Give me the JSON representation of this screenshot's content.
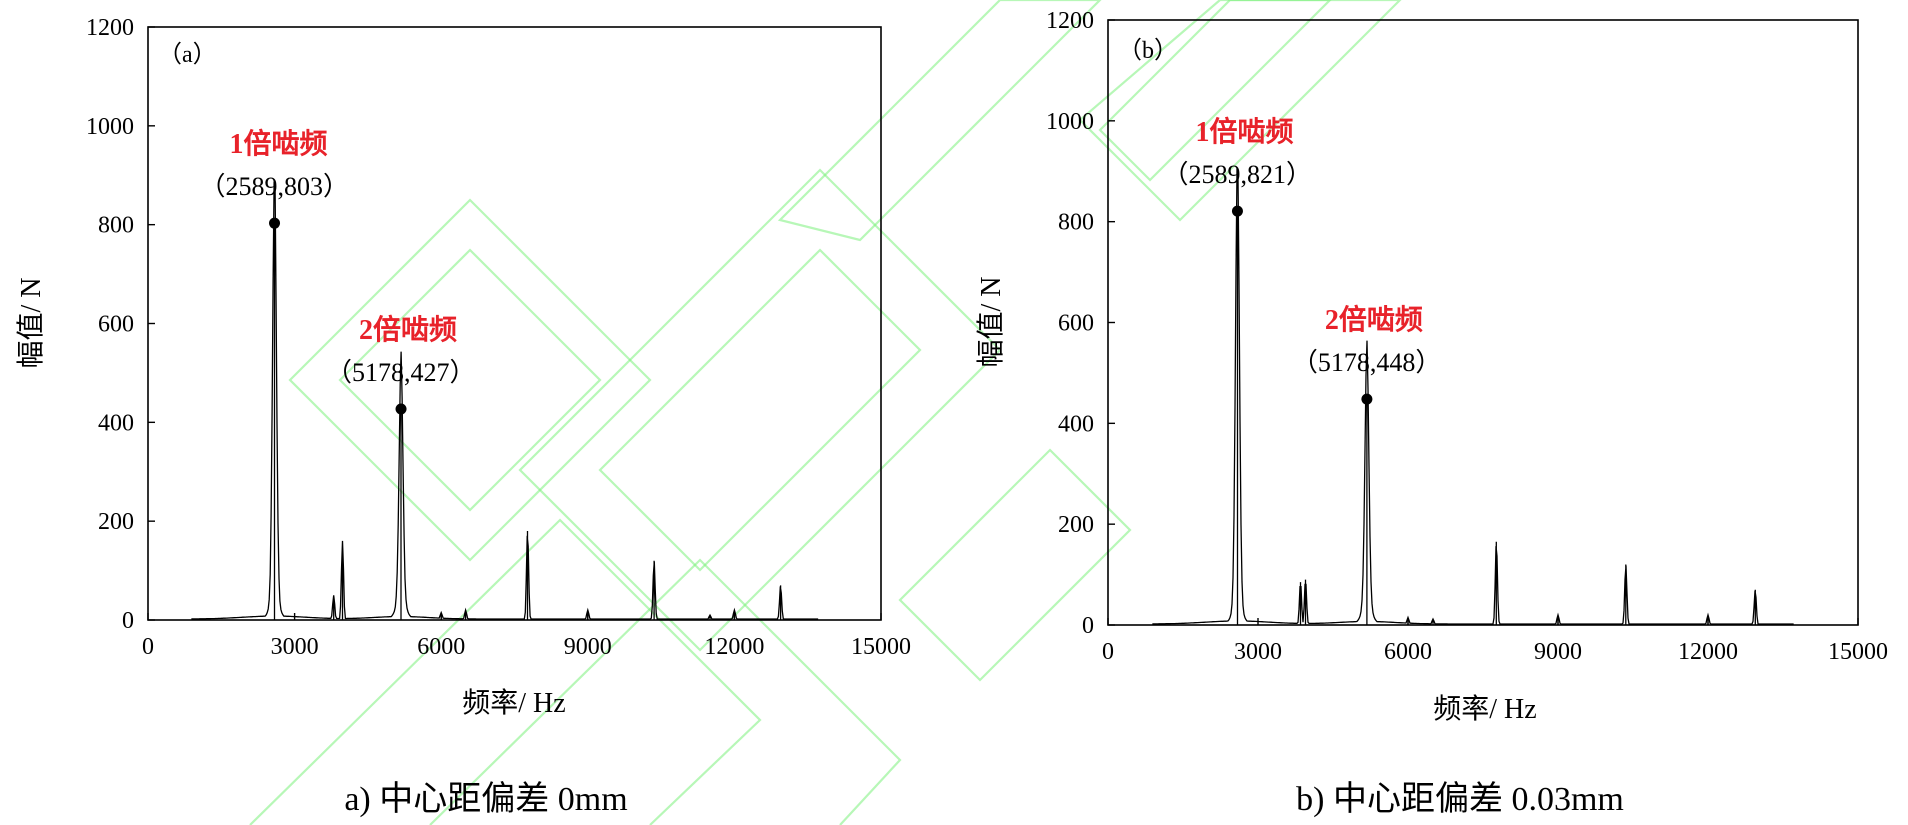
{
  "colors": {
    "axis": "#000000",
    "line": "#000000",
    "annotation": "#e8222a",
    "watermark": "#7cf07c"
  },
  "chart_data": [
    {
      "type": "line",
      "panel_label": "（a）",
      "caption": "a)  中心距偏差 0mm",
      "xlabel": "频率/ Hz",
      "ylabel": "幅值/ N",
      "xlim": [
        0,
        15000
      ],
      "ylim": [
        0,
        1200
      ],
      "xticks": [
        0,
        3000,
        6000,
        9000,
        12000,
        15000
      ],
      "yticks": [
        0,
        200,
        400,
        600,
        800,
        1000,
        1200
      ],
      "grid": false,
      "peaks": [
        {
          "x": 2589,
          "y": 803
        },
        {
          "x": 3800,
          "y": 50
        },
        {
          "x": 3980,
          "y": 160
        },
        {
          "x": 5178,
          "y": 427
        },
        {
          "x": 6000,
          "y": 15
        },
        {
          "x": 6500,
          "y": 20
        },
        {
          "x": 7767,
          "y": 180
        },
        {
          "x": 9000,
          "y": 20
        },
        {
          "x": 10356,
          "y": 120
        },
        {
          "x": 11500,
          "y": 10
        },
        {
          "x": 12000,
          "y": 20
        },
        {
          "x": 12945,
          "y": 70
        }
      ],
      "annotations": [
        {
          "label": "1倍啮频",
          "point": "（2589,803）",
          "x": 2589,
          "y": 803
        },
        {
          "label": "2倍啮频",
          "point": "（5178,427）",
          "x": 5178,
          "y": 427
        }
      ]
    },
    {
      "type": "line",
      "panel_label": "（b）",
      "caption": "b)  中心距偏差 0.03mm",
      "xlabel": "频率/ Hz",
      "ylabel": "幅值/ N",
      "xlim": [
        0,
        15000
      ],
      "ylim": [
        0,
        1200
      ],
      "xticks": [
        0,
        3000,
        6000,
        9000,
        12000,
        15000
      ],
      "yticks": [
        0,
        200,
        400,
        600,
        800,
        1000,
        1200
      ],
      "grid": false,
      "peaks": [
        {
          "x": 2589,
          "y": 821
        },
        {
          "x": 3850,
          "y": 85
        },
        {
          "x": 3950,
          "y": 90
        },
        {
          "x": 5178,
          "y": 448
        },
        {
          "x": 6000,
          "y": 15
        },
        {
          "x": 6500,
          "y": 12
        },
        {
          "x": 7767,
          "y": 165
        },
        {
          "x": 9000,
          "y": 20
        },
        {
          "x": 10356,
          "y": 120
        },
        {
          "x": 12000,
          "y": 20
        },
        {
          "x": 12945,
          "y": 70
        }
      ],
      "annotations": [
        {
          "label": "1倍啮频",
          "point": "（2589,821）",
          "x": 2589,
          "y": 821
        },
        {
          "label": "2倍啮频",
          "point": "（5178,448）",
          "x": 5178,
          "y": 448
        }
      ]
    }
  ]
}
